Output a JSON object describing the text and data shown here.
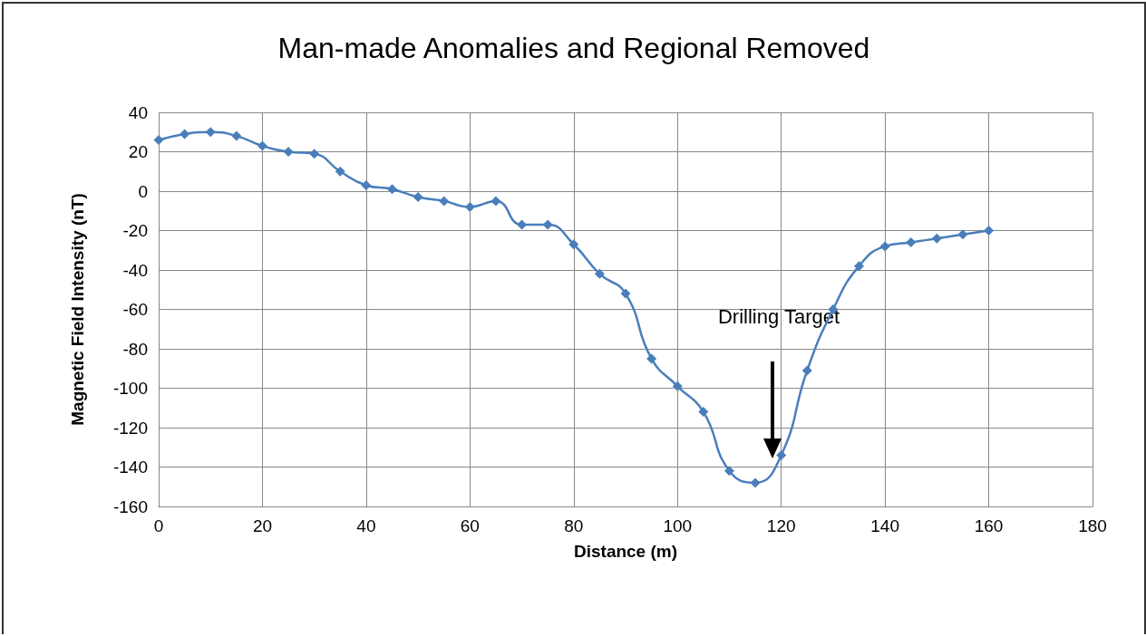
{
  "chart_data": {
    "type": "line",
    "title": "Man-made Anomalies and Regional Removed",
    "xlabel": "Distance (m)",
    "ylabel": "Magnetic Field Intensity (nT)",
    "x": [
      0,
      5,
      10,
      15,
      20,
      25,
      30,
      35,
      40,
      45,
      50,
      55,
      60,
      65,
      70,
      75,
      80,
      85,
      90,
      95,
      100,
      105,
      110,
      115,
      120,
      125,
      130,
      135,
      140,
      145,
      150,
      155,
      160
    ],
    "series": [
      {
        "color": "#4a7ebb",
        "values": [
          26,
          29,
          30,
          28,
          23,
          20,
          19,
          10,
          3,
          1,
          -3,
          -5,
          -8,
          -5,
          -17,
          -17,
          -27,
          -42,
          -52,
          -85,
          -99,
          -112,
          -142,
          -148,
          -134,
          -91,
          -60,
          -38,
          -28,
          -26,
          -24,
          -22,
          -20
        ]
      }
    ],
    "xlim": [
      0,
      180
    ],
    "xticks": [
      0,
      20,
      40,
      60,
      80,
      100,
      120,
      140,
      160,
      180
    ],
    "ylim": [
      -160,
      40
    ],
    "yticks": [
      -160,
      -140,
      -120,
      -100,
      -80,
      -60,
      -40,
      -20,
      0,
      20,
      40
    ],
    "grid": true,
    "marker": "diamond",
    "line_style": "solid",
    "annotations": [
      "Drilling Target"
    ]
  }
}
